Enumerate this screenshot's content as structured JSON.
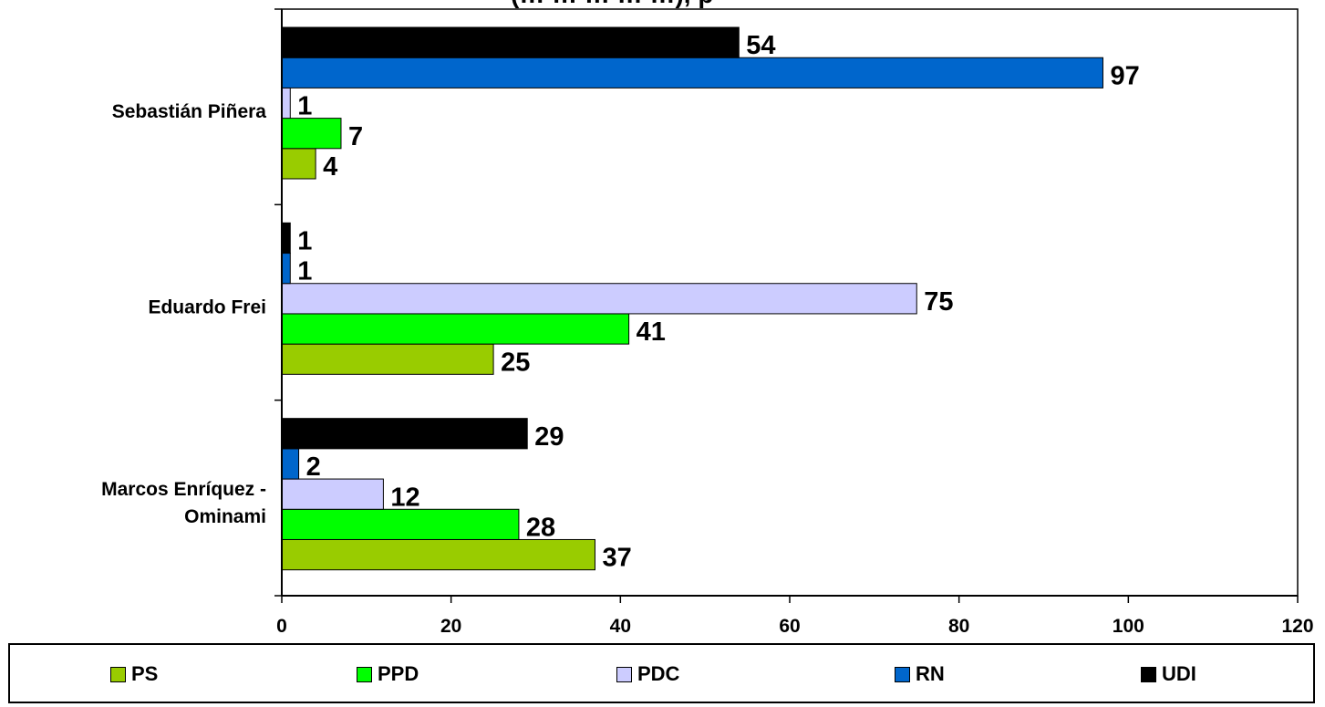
{
  "title_fragment": "(… … … … …), p",
  "chart_data": {
    "type": "bar",
    "orientation": "horizontal",
    "categories": [
      "Sebastián Piñera",
      "Eduardo Frei",
      "Marcos Enríquez - Ominami"
    ],
    "category_lines": [
      [
        "Sebastián Piñera"
      ],
      [
        "Eduardo Frei"
      ],
      [
        "Marcos Enríquez -",
        "Ominami"
      ]
    ],
    "series": [
      {
        "name": "PS",
        "color": "#99cc00",
        "values": [
          4,
          25,
          37
        ]
      },
      {
        "name": "PPD",
        "color": "#00ff00",
        "values": [
          7,
          41,
          28
        ]
      },
      {
        "name": "PDC",
        "color": "#ccccff",
        "values": [
          1,
          75,
          12
        ]
      },
      {
        "name": "RN",
        "color": "#0066cc",
        "values": [
          97,
          1,
          2
        ]
      },
      {
        "name": "UDI",
        "color": "#000000",
        "values": [
          54,
          1,
          29
        ]
      }
    ],
    "xlim": [
      0,
      120
    ],
    "x_ticks": [
      0,
      20,
      40,
      60,
      80,
      100,
      120
    ],
    "grid": false,
    "legend_position": "bottom",
    "data_labels": true
  }
}
